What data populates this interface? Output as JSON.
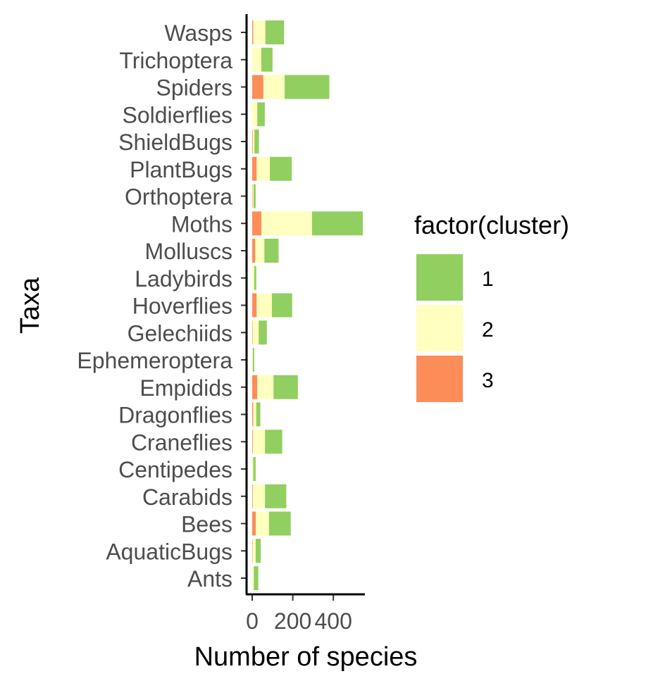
{
  "chart_data": {
    "type": "bar",
    "stacked": true,
    "orientation": "horizontal",
    "xlabel": "Number of species",
    "ylabel": "Taxa",
    "xlim": [
      0,
      560
    ],
    "xticks": [
      0,
      200,
      400
    ],
    "xtick_labels": [
      "0",
      "200",
      "400"
    ],
    "grid": false,
    "legend": {
      "title": "factor(cluster)",
      "position": "right",
      "entries": [
        {
          "label": "1",
          "color": "#91CF60"
        },
        {
          "label": "2",
          "color": "#FFFFBF"
        },
        {
          "label": "3",
          "color": "#FC8D59"
        }
      ]
    },
    "categories": [
      "Wasps",
      "Trichoptera",
      "Spiders",
      "Soldierflies",
      "ShieldBugs",
      "PlantBugs",
      "Orthoptera",
      "Moths",
      "Molluscs",
      "Ladybirds",
      "Hoverflies",
      "Gelechiids",
      "Ephemeroptera",
      "Empidids",
      "Dragonflies",
      "Craneflies",
      "Centipedes",
      "Carabids",
      "Bees",
      "AquaticBugs",
      "Ants"
    ],
    "series": [
      {
        "name": "3",
        "color": "#FC8D59",
        "values": [
          5,
          0,
          55,
          0,
          3,
          22,
          2,
          45,
          15,
          0,
          22,
          2,
          0,
          25,
          5,
          3,
          0,
          3,
          18,
          2,
          0
        ]
      },
      {
        "name": "2",
        "color": "#FFFFBF",
        "values": [
          60,
          45,
          105,
          25,
          8,
          65,
          5,
          250,
          45,
          10,
          75,
          30,
          3,
          80,
          15,
          60,
          5,
          60,
          65,
          15,
          8
        ]
      },
      {
        "name": "1",
        "color": "#91CF60",
        "values": [
          92,
          55,
          220,
          37,
          22,
          108,
          10,
          250,
          70,
          10,
          100,
          40,
          7,
          120,
          20,
          85,
          12,
          105,
          107,
          25,
          22
        ]
      }
    ]
  }
}
